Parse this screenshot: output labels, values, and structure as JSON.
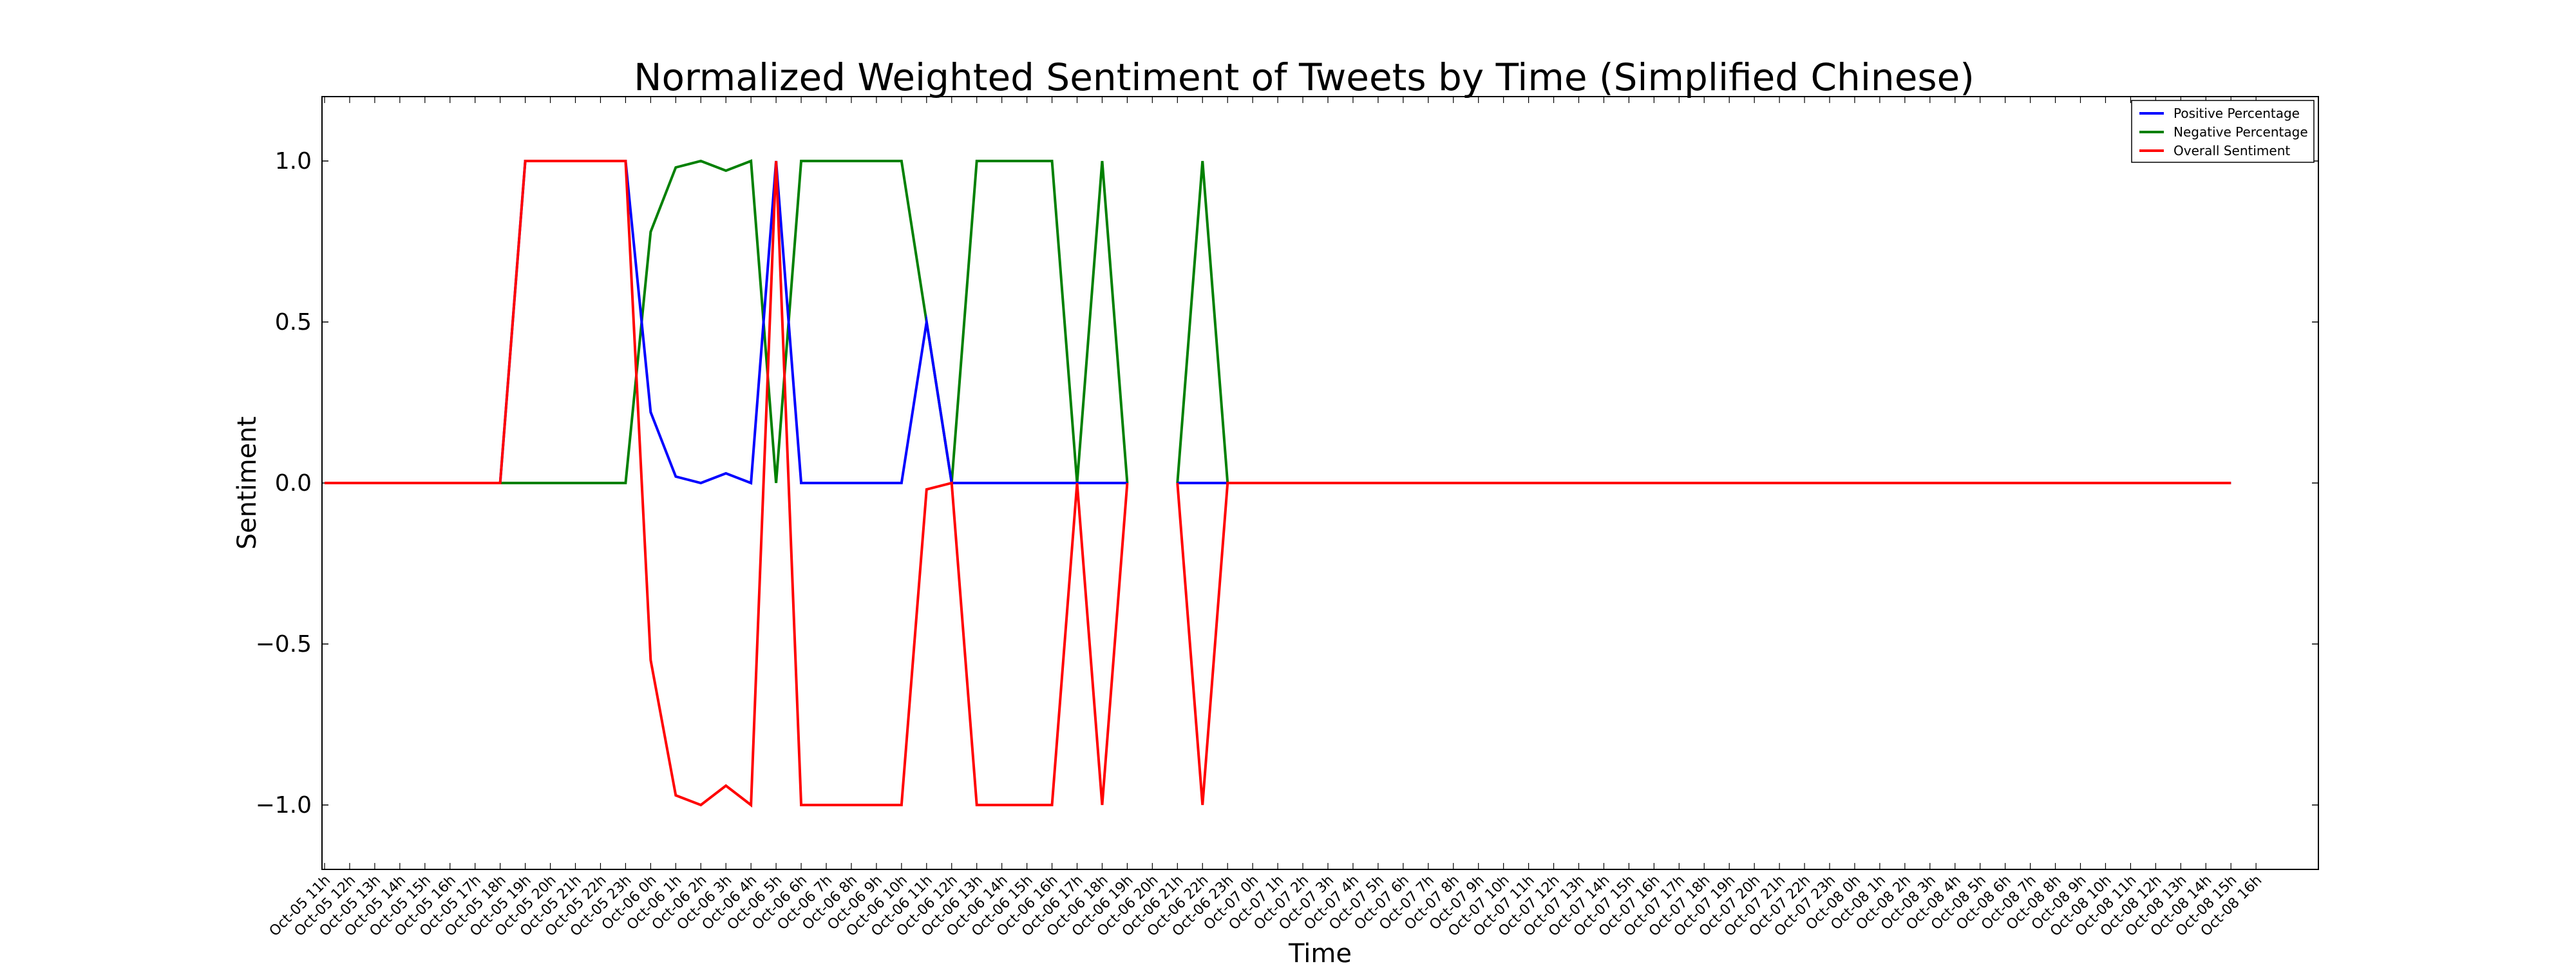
{
  "chart_data": {
    "type": "line",
    "title": "Normalized Weighted Sentiment of Tweets by Time (Simplified Chinese)",
    "xlabel": "Time",
    "ylabel": "Sentiment",
    "ylim": [
      -1.2,
      1.2
    ],
    "yticks": [
      -1.0,
      -0.5,
      0.0,
      0.5,
      1.0
    ],
    "ytick_labels": [
      "−1.0",
      "−0.5",
      "0.0",
      "0.5",
      "1.0"
    ],
    "grid": false,
    "legend_position": "top-right",
    "categories": [
      "Oct-05 11h",
      "Oct-05 12h",
      "Oct-05 13h",
      "Oct-05 14h",
      "Oct-05 15h",
      "Oct-05 16h",
      "Oct-05 17h",
      "Oct-05 18h",
      "Oct-05 19h",
      "Oct-05 20h",
      "Oct-05 21h",
      "Oct-05 22h",
      "Oct-05 23h",
      "Oct-06 0h",
      "Oct-06 1h",
      "Oct-06 2h",
      "Oct-06 3h",
      "Oct-06 4h",
      "Oct-06 5h",
      "Oct-06 6h",
      "Oct-06 7h",
      "Oct-06 8h",
      "Oct-06 9h",
      "Oct-06 10h",
      "Oct-06 11h",
      "Oct-06 12h",
      "Oct-06 13h",
      "Oct-06 14h",
      "Oct-06 15h",
      "Oct-06 16h",
      "Oct-06 17h",
      "Oct-06 18h",
      "Oct-06 19h",
      "Oct-06 20h",
      "Oct-06 21h",
      "Oct-06 22h",
      "Oct-06 23h",
      "Oct-07 0h",
      "Oct-07 1h",
      "Oct-07 2h",
      "Oct-07 3h",
      "Oct-07 4h",
      "Oct-07 5h",
      "Oct-07 6h",
      "Oct-07 7h",
      "Oct-07 8h",
      "Oct-07 9h",
      "Oct-07 10h",
      "Oct-07 11h",
      "Oct-07 12h",
      "Oct-07 13h",
      "Oct-07 14h",
      "Oct-07 15h",
      "Oct-07 16h",
      "Oct-07 17h",
      "Oct-07 18h",
      "Oct-07 19h",
      "Oct-07 20h",
      "Oct-07 21h",
      "Oct-07 22h",
      "Oct-07 23h",
      "Oct-08 0h",
      "Oct-08 1h",
      "Oct-08 2h",
      "Oct-08 3h",
      "Oct-08 4h",
      "Oct-08 5h",
      "Oct-08 6h",
      "Oct-08 7h",
      "Oct-08 8h",
      "Oct-08 9h",
      "Oct-08 10h",
      "Oct-08 11h",
      "Oct-08 12h",
      "Oct-08 13h",
      "Oct-08 14h",
      "Oct-08 15h",
      "Oct-08 16h"
    ],
    "series": [
      {
        "name": "Positive Percentage",
        "color": "#0000ff",
        "values": [
          0,
          0,
          0,
          0,
          0,
          0,
          0,
          0,
          1,
          1,
          1,
          1,
          1,
          0.22,
          0.02,
          0,
          0.03,
          0,
          1,
          0,
          0,
          0,
          0,
          0,
          0.5,
          0,
          0,
          0,
          0,
          0,
          0,
          0,
          0,
          null,
          0,
          0,
          0,
          0,
          0,
          0,
          0,
          0,
          0,
          0,
          0,
          0,
          0,
          0,
          0,
          0,
          0,
          0,
          0,
          0,
          0,
          0,
          0,
          0,
          0,
          0,
          0,
          0,
          0,
          0,
          0,
          0,
          0,
          0,
          0,
          0,
          0,
          0,
          0,
          0,
          0,
          0,
          0,
          null
        ]
      },
      {
        "name": "Negative Percentage",
        "color": "#008000",
        "values": [
          0,
          0,
          0,
          0,
          0,
          0,
          0,
          0,
          0,
          0,
          0,
          0,
          0,
          0.78,
          0.98,
          1,
          0.97,
          1,
          0,
          1,
          1,
          1,
          1,
          1,
          0.5,
          0,
          1,
          1,
          1,
          1,
          0,
          1,
          0,
          null,
          0,
          1,
          0,
          0,
          0,
          0,
          0,
          0,
          0,
          0,
          0,
          0,
          0,
          0,
          0,
          0,
          0,
          0,
          0,
          0,
          0,
          0,
          0,
          0,
          0,
          0,
          0,
          0,
          0,
          0,
          0,
          0,
          0,
          0,
          0,
          0,
          0,
          0,
          0,
          0,
          0,
          0,
          0,
          null
        ]
      },
      {
        "name": "Overall Sentiment",
        "color": "#ff0000",
        "values": [
          0,
          0,
          0,
          0,
          0,
          0,
          0,
          0,
          1,
          1,
          1,
          1,
          1,
          -0.55,
          -0.97,
          -1,
          -0.94,
          -1,
          1,
          -1,
          -1,
          -1,
          -1,
          -1,
          -0.02,
          0,
          -1,
          -1,
          -1,
          -1,
          0,
          -1,
          0,
          null,
          0,
          -1,
          0,
          0,
          0,
          0,
          0,
          0,
          0,
          0,
          0,
          0,
          0,
          0,
          0,
          0,
          0,
          0,
          0,
          0,
          0,
          0,
          0,
          0,
          0,
          0,
          0,
          0,
          0,
          0,
          0,
          0,
          0,
          0,
          0,
          0,
          0,
          0,
          0,
          0,
          0,
          0,
          0,
          null
        ]
      }
    ]
  }
}
